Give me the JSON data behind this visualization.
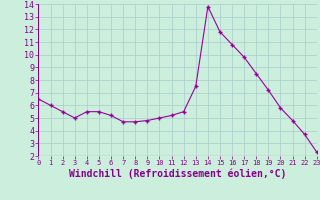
{
  "x": [
    0,
    1,
    2,
    3,
    4,
    5,
    6,
    7,
    8,
    9,
    10,
    11,
    12,
    13,
    14,
    15,
    16,
    17,
    18,
    19,
    20,
    21,
    22,
    23
  ],
  "y": [
    6.5,
    6.0,
    5.5,
    5.0,
    5.5,
    5.5,
    5.2,
    4.7,
    4.7,
    4.8,
    5.0,
    5.2,
    5.5,
    7.5,
    13.8,
    11.8,
    10.8,
    9.8,
    8.5,
    7.2,
    5.8,
    4.8,
    3.7,
    2.3
  ],
  "line_color": "#990099",
  "marker": "+",
  "marker_size": 3,
  "marker_edge_width": 1.0,
  "line_width": 0.8,
  "background_color": "#cceedd",
  "grid_color": "#aacccc",
  "xlabel": "Windchill (Refroidissement éolien,°C)",
  "xlabel_color": "#880088",
  "tick_color": "#880088",
  "ylim": [
    2,
    14
  ],
  "xlim": [
    0,
    23
  ],
  "yticks": [
    2,
    3,
    4,
    5,
    6,
    7,
    8,
    9,
    10,
    11,
    12,
    13,
    14
  ],
  "xticks": [
    0,
    1,
    2,
    3,
    4,
    5,
    6,
    7,
    8,
    9,
    10,
    11,
    12,
    13,
    14,
    15,
    16,
    17,
    18,
    19,
    20,
    21,
    22,
    23
  ],
  "xlabel_fontsize": 7,
  "tick_fontsize_x": 5,
  "tick_fontsize_y": 6
}
